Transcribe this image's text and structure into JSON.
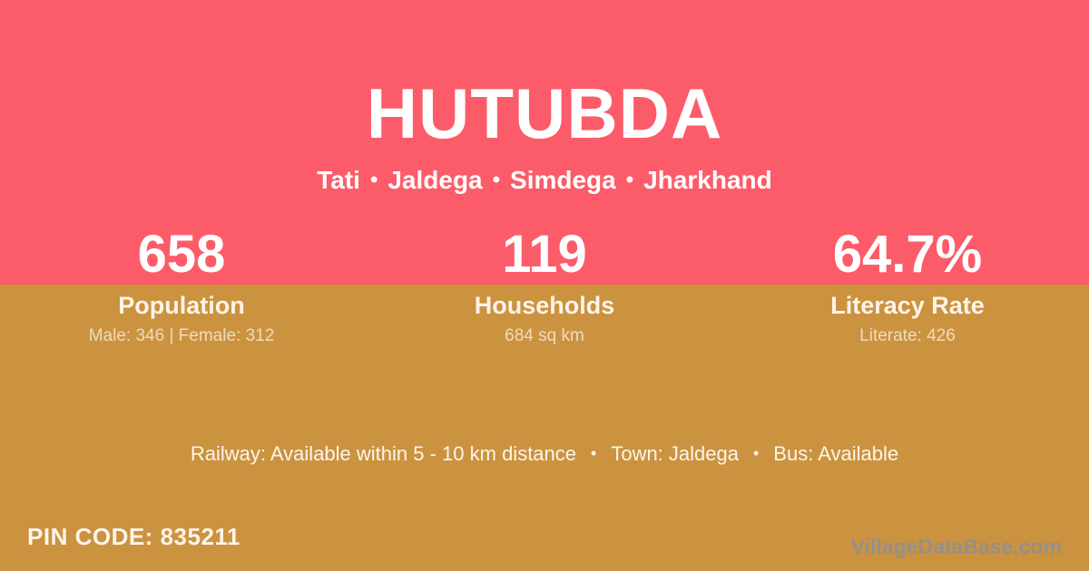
{
  "theme": {
    "pink": "#fc5c69",
    "gold": "#cb9340",
    "white": "#ffffff",
    "cream": "#fdf4e9",
    "muted-cream": "#eedcbf",
    "watermark-gray": "#8f9094"
  },
  "header": {
    "title": "HUTUBDA",
    "separator": "•",
    "region": [
      "Tati",
      "Jaldega",
      "Simdega",
      "Jharkhand"
    ]
  },
  "stats": [
    {
      "value": "658",
      "label": "Population",
      "detail": "Male: 346 | Female: 312"
    },
    {
      "value": "119",
      "label": "Households",
      "detail": "684 sq km"
    },
    {
      "value": "64.7%",
      "label": "Literacy Rate",
      "detail": "Literate: 426"
    }
  ],
  "info": {
    "separator": "•",
    "items": [
      "Railway: Available within 5 - 10 km distance",
      "Town: Jaldega",
      "Bus: Available"
    ]
  },
  "pin": {
    "text": "PIN CODE: 835211"
  },
  "watermark": {
    "text": "VillageDataBase.com"
  }
}
